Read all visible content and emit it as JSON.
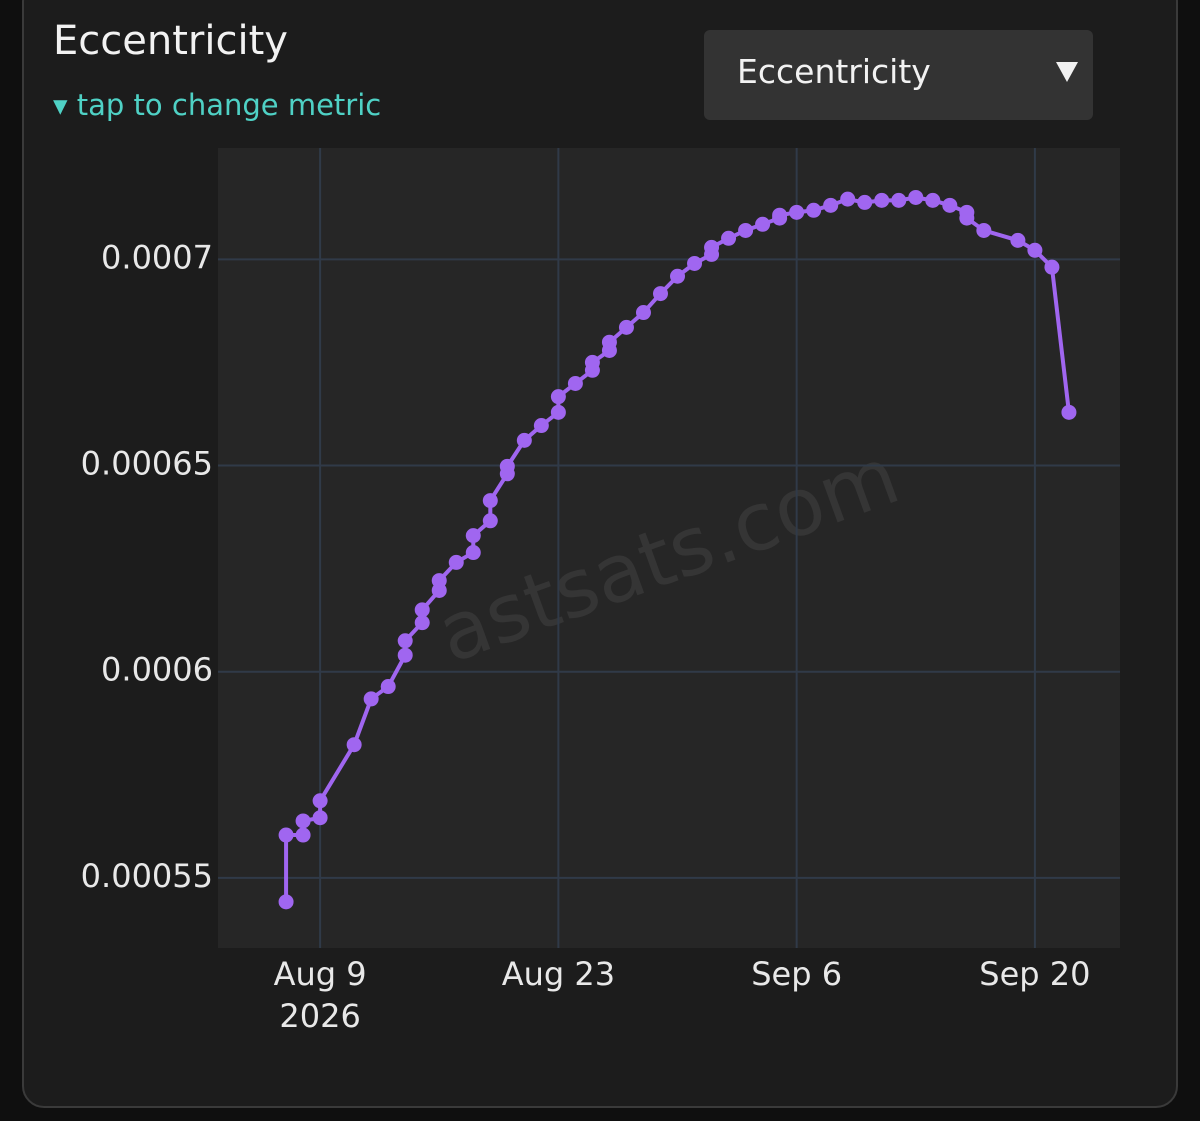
{
  "header": {
    "title": "Eccentricity",
    "subtitle": "▾ tap to change metric",
    "dropdown": "Eccentricity"
  },
  "chart_data": {
    "type": "line",
    "watermark": "astsats.com",
    "x": [
      "2026-08-07",
      "2026-08-07",
      "2026-08-08",
      "2026-08-08",
      "2026-08-09",
      "2026-08-09",
      "2026-08-11",
      "2026-08-12",
      "2026-08-13",
      "2026-08-14",
      "2026-08-14",
      "2026-08-15",
      "2026-08-15",
      "2026-08-16",
      "2026-08-16",
      "2026-08-17",
      "2026-08-18",
      "2026-08-18",
      "2026-08-19",
      "2026-08-19",
      "2026-08-20",
      "2026-08-20",
      "2026-08-21",
      "2026-08-22",
      "2026-08-23",
      "2026-08-23",
      "2026-08-24",
      "2026-08-25",
      "2026-08-25",
      "2026-08-26",
      "2026-08-26",
      "2026-08-27",
      "2026-08-28",
      "2026-08-29",
      "2026-08-30",
      "2026-08-31",
      "2026-09-01",
      "2026-09-01",
      "2026-09-02",
      "2026-09-03",
      "2026-09-04",
      "2026-09-05",
      "2026-09-05",
      "2026-09-06",
      "2026-09-07",
      "2026-09-08",
      "2026-09-09",
      "2026-09-10",
      "2026-09-11",
      "2026-09-12",
      "2026-09-13",
      "2026-09-14",
      "2026-09-15",
      "2026-09-16",
      "2026-09-16",
      "2026-09-17",
      "2026-09-19",
      "2026-09-20",
      "2026-09-21",
      "2026-09-22"
    ],
    "series": [
      {
        "color": "#a066f0",
        "values": [
          0.0005442,
          0.0005604,
          0.0005604,
          0.0005638,
          0.0005646,
          0.0005687,
          0.0005823,
          0.0005934,
          0.0005964,
          0.000604,
          0.0006075,
          0.0006119,
          0.000615,
          0.0006197,
          0.0006221,
          0.0006265,
          0.0006289,
          0.000633,
          0.0006366,
          0.0006415,
          0.000648,
          0.0006498,
          0.0006561,
          0.0006597,
          0.0006629,
          0.0006667,
          0.0006699,
          0.0006731,
          0.000675,
          0.0006779,
          0.0006799,
          0.0006835,
          0.0006871,
          0.0006917,
          0.0006959,
          0.000699,
          0.0007012,
          0.0007029,
          0.0007051,
          0.000707,
          0.0007085,
          0.00071,
          0.0007107,
          0.0007114,
          0.0007119,
          0.0007131,
          0.0007146,
          0.0007138,
          0.0007143,
          0.0007143,
          0.000715,
          0.0007143,
          0.0007131,
          0.0007114,
          0.00071,
          0.000707,
          0.0007046,
          0.0007022,
          0.0006981,
          0.0006629
        ]
      }
    ],
    "xlim": [
      "2026-08-03",
      "2026-09-25"
    ],
    "xticks": [
      {
        "value": "2026-08-09",
        "label": "Aug 9",
        "sublabel": "2026"
      },
      {
        "value": "2026-08-23",
        "label": "Aug 23"
      },
      {
        "value": "2026-09-06",
        "label": "Sep 6"
      },
      {
        "value": "2026-09-20",
        "label": "Sep 20"
      }
    ],
    "ylim": [
      0.000533,
      0.000727
    ],
    "yticks": [
      0.00055,
      0.0006,
      0.00065,
      0.0007
    ],
    "grid": true
  }
}
